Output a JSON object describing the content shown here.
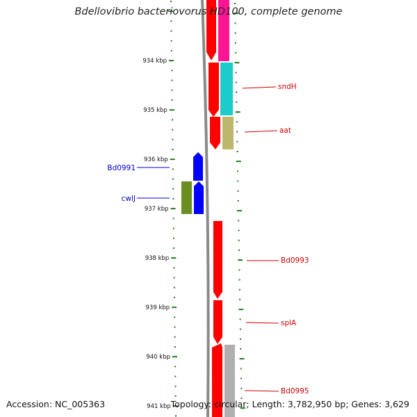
{
  "title": "Bdellovibrio bacteriovorus HD100, complete genome",
  "accession_label": "Accession: NC_005363",
  "topology_label": "Topology: circular; Length: 3,782,950 bp; Genes: 3,629",
  "colors": {
    "tick": "#1a7a1a",
    "backbone": "#8a8a8a",
    "gene_red": "#ff0000",
    "gene_magenta": "#ff1493",
    "gene_cyan": "#1ccccc",
    "gene_khaki": "#bdb76b",
    "gene_blue": "#0000ff",
    "gene_olive": "#6b8e23",
    "gene_gray": "#b0b0b0",
    "label_red": "#cc0000",
    "label_blue": "#0000cc"
  },
  "scale_labels": [
    "934 kbp",
    "935 kbp",
    "936 kbp",
    "937 kbp",
    "938 kbp",
    "939 kbp",
    "940 kbp",
    "941 kbp"
  ],
  "gene_labels": [
    {
      "text": "sndH",
      "side": "right",
      "color": "red"
    },
    {
      "text": "aat",
      "side": "right",
      "color": "red"
    },
    {
      "text": "Bd0991",
      "side": "left",
      "color": "blue"
    },
    {
      "text": "cwlJ",
      "side": "left",
      "color": "blue"
    },
    {
      "text": "Bd0993",
      "side": "right",
      "color": "red"
    },
    {
      "text": "splA",
      "side": "right",
      "color": "red"
    },
    {
      "text": "Bd0995",
      "side": "right",
      "color": "red"
    }
  ]
}
